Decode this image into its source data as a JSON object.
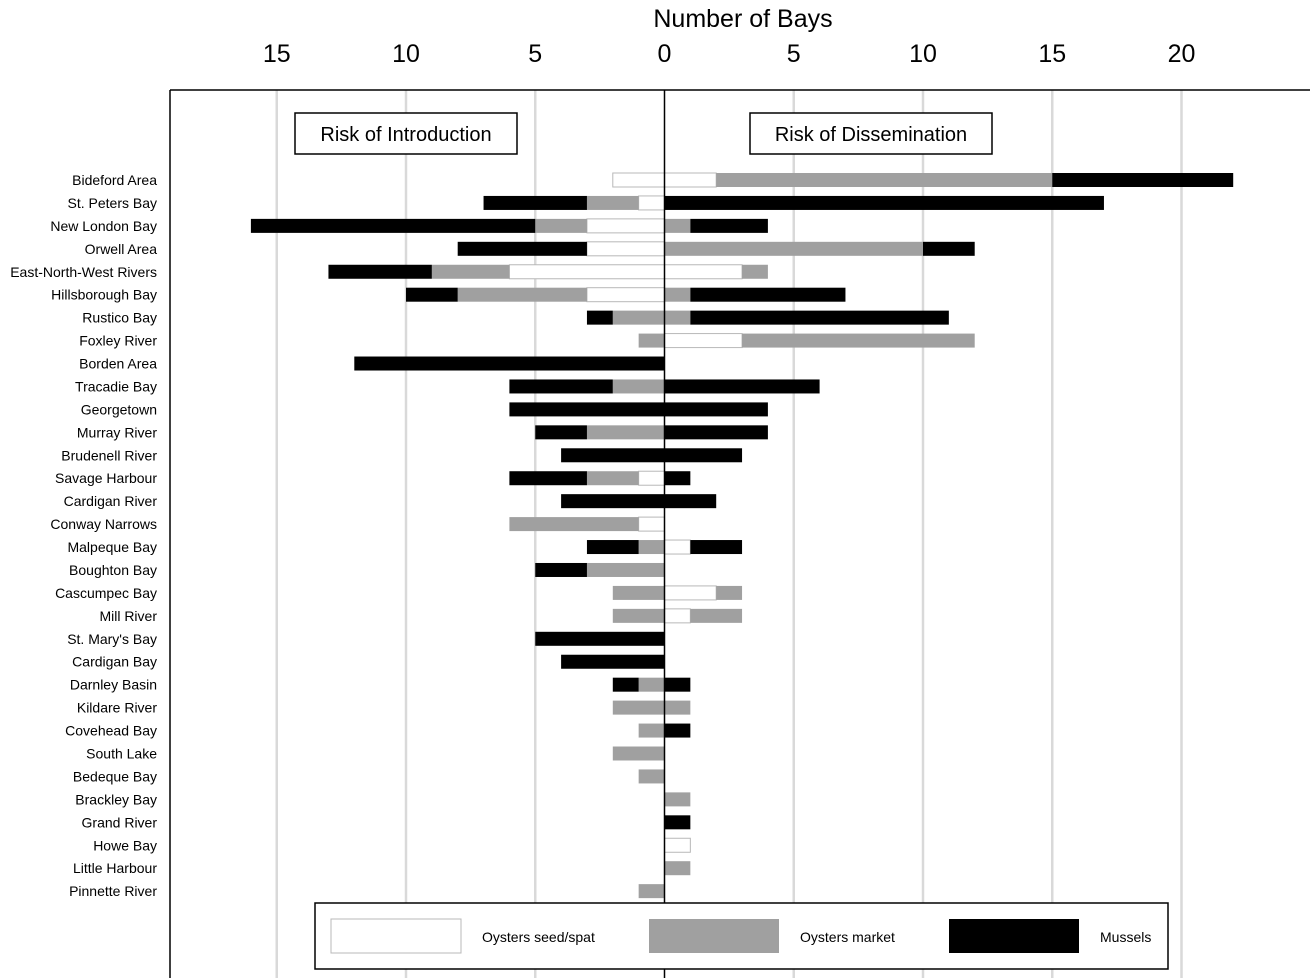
{
  "chart_data": {
    "type": "bar",
    "orientation": "horizontal-diverging",
    "xlabel": "Number of Bays",
    "left_tick_labels": [
      "15",
      "10",
      "5",
      "0"
    ],
    "right_tick_labels": [
      "5",
      "10",
      "15",
      "20"
    ],
    "left_ticks": [
      15,
      10,
      5,
      0
    ],
    "right_ticks": [
      5,
      10,
      15,
      20
    ],
    "xlim_left": 16,
    "xlim_right": 22,
    "grid": true,
    "annotations": {
      "left": "Risk of Introduction",
      "right": "Risk of Dissemination"
    },
    "series": [
      {
        "key": "oyster_seed",
        "name": "Oysters seed/spat",
        "color": "#ffffff"
      },
      {
        "key": "oyster_market",
        "name": "Oysters market",
        "color": "#a0a0a0"
      },
      {
        "key": "mussels",
        "name": "Mussels",
        "color": "#000000"
      }
    ],
    "legend_position": "bottom",
    "categories": [
      "Bideford Area",
      "St. Peters Bay",
      "New London Bay",
      "Orwell Area",
      "East-North-West Rivers",
      "Hillsborough Bay",
      "Rustico Bay",
      "Foxley River",
      "Borden Area",
      "Tracadie Bay",
      "Georgetown",
      "Murray River",
      "Brudenell River",
      "Savage Harbour",
      "Cardigan River",
      "Conway Narrows",
      "Malpeque Bay",
      "Boughton Bay",
      "Cascumpec Bay",
      "Mill River",
      "St. Mary's Bay",
      "Cardigan Bay",
      "Darnley Basin",
      "Kildare River",
      "Covehead Bay",
      "South Lake",
      "Bedeque Bay",
      "Brackley Bay",
      "Grand River",
      "Howe Bay",
      "Little Harbour",
      "Pinnette River"
    ],
    "introduction": {
      "oyster_seed": [
        2,
        1,
        3,
        3,
        6,
        3,
        0,
        0,
        0,
        0,
        0,
        0,
        0,
        1,
        0,
        1,
        0,
        0,
        0,
        0,
        0,
        0,
        0,
        0,
        0,
        0,
        0,
        0,
        0,
        0,
        0,
        0
      ],
      "oyster_market": [
        0,
        2,
        2,
        0,
        3,
        5,
        2,
        1,
        0,
        2,
        0,
        3,
        0,
        2,
        0,
        5,
        1,
        3,
        2,
        2,
        0,
        0,
        1,
        2,
        1,
        2,
        1,
        0,
        0,
        0,
        0,
        1
      ],
      "mussels": [
        0,
        4,
        11,
        5,
        4,
        2,
        1,
        0,
        12,
        4,
        6,
        2,
        4,
        3,
        4,
        0,
        2,
        2,
        0,
        0,
        5,
        4,
        1,
        0,
        0,
        0,
        0,
        0,
        0,
        0,
        0,
        0
      ]
    },
    "dissemination": {
      "oyster_seed": [
        2,
        0,
        0,
        0,
        3,
        0,
        0,
        3,
        0,
        0,
        0,
        0,
        0,
        0,
        0,
        0,
        1,
        0,
        2,
        1,
        0,
        0,
        0,
        0,
        0,
        0,
        0,
        0,
        0,
        1,
        0,
        0
      ],
      "oyster_market": [
        13,
        0,
        1,
        10,
        1,
        1,
        1,
        9,
        0,
        0,
        0,
        0,
        0,
        0,
        0,
        0,
        0,
        0,
        1,
        2,
        0,
        0,
        0,
        1,
        0,
        0,
        0,
        1,
        0,
        0,
        1,
        0
      ],
      "mussels": [
        7,
        17,
        3,
        2,
        0,
        6,
        10,
        0,
        0,
        6,
        4,
        4,
        3,
        1,
        2,
        0,
        2,
        0,
        0,
        0,
        0,
        0,
        1,
        0,
        1,
        0,
        0,
        0,
        1,
        0,
        0,
        0
      ]
    }
  }
}
